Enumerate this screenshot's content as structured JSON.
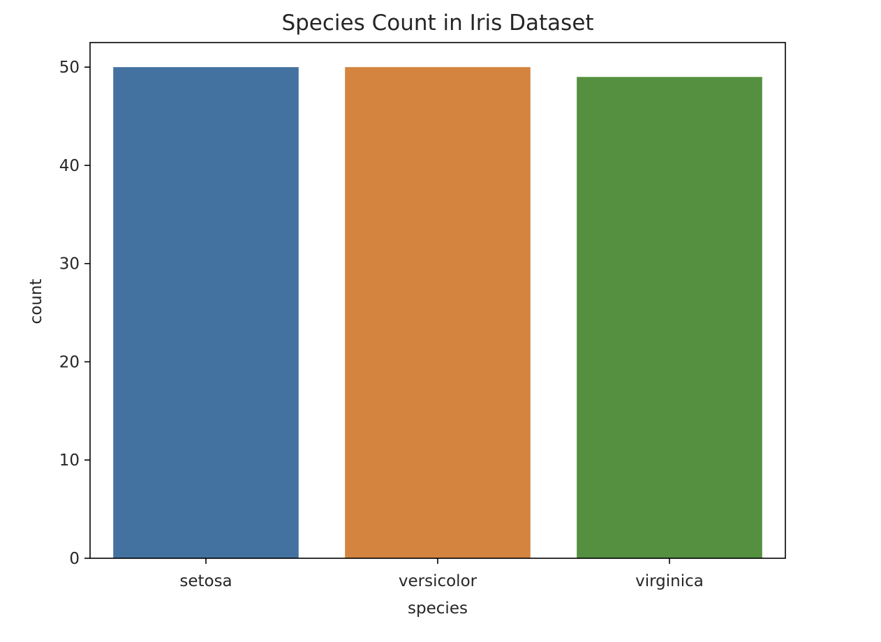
{
  "chart_data": {
    "type": "bar",
    "title": "Species Count in Iris Dataset",
    "xlabel": "species",
    "ylabel": "count",
    "categories": [
      "setosa",
      "versicolor",
      "virginica"
    ],
    "values": [
      50,
      50,
      49
    ],
    "colors": [
      "#4472a0",
      "#d4843e",
      "#54903f"
    ],
    "ylim": [
      0,
      52.5
    ],
    "yticks": [
      0,
      10,
      20,
      30,
      40,
      50
    ],
    "grid": false,
    "legend": "none"
  }
}
